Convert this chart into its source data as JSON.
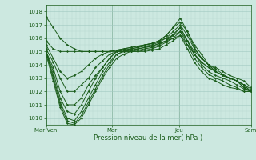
{
  "xlabel": "Pression niveau de la mer( hPa )",
  "background_color": "#cce8e0",
  "grid_color_minor": "#b8d8d0",
  "grid_color_major": "#a0c8c0",
  "line_color": "#1a5c1a",
  "ylim": [
    1009.5,
    1018.5
  ],
  "yticks": [
    1010,
    1011,
    1012,
    1013,
    1014,
    1015,
    1016,
    1017,
    1018
  ],
  "xtick_labels": [
    "Mar Ven",
    "Mer",
    "Jeu",
    "Sam"
  ],
  "xtick_positions": [
    0,
    32,
    65,
    100
  ],
  "series": [
    [
      1017.6,
      1016.8,
      1016.0,
      1015.5,
      1015.2,
      1015.0,
      1015.0,
      1015.0,
      1015.0,
      1015.0,
      1015.1,
      1015.2,
      1015.3,
      1015.4,
      1015.5,
      1015.6,
      1015.8,
      1016.2,
      1016.8,
      1017.2,
      1016.5,
      1015.5,
      1014.8,
      1014.0,
      1013.5,
      1013.2,
      1013.0,
      1012.8,
      1012.5,
      1012.0
    ],
    [
      1015.8,
      1015.2,
      1015.0,
      1015.0,
      1015.0,
      1015.0,
      1015.0,
      1015.0,
      1015.0,
      1015.0,
      1015.0,
      1015.0,
      1015.1,
      1015.2,
      1015.3,
      1015.4,
      1015.6,
      1015.8,
      1016.0,
      1016.2,
      1015.5,
      1014.8,
      1014.2,
      1013.8,
      1013.5,
      1013.2,
      1013.0,
      1012.8,
      1012.5,
      1012.2
    ],
    [
      1015.5,
      1014.5,
      1013.5,
      1013.0,
      1013.2,
      1013.5,
      1014.0,
      1014.5,
      1014.8,
      1015.0,
      1015.1,
      1015.2,
      1015.3,
      1015.4,
      1015.5,
      1015.6,
      1015.8,
      1016.0,
      1016.2,
      1016.5,
      1015.8,
      1015.0,
      1014.5,
      1014.0,
      1013.8,
      1013.5,
      1013.2,
      1013.0,
      1012.8,
      1012.3
    ],
    [
      1015.2,
      1014.2,
      1013.0,
      1012.0,
      1012.0,
      1012.5,
      1013.0,
      1013.8,
      1014.3,
      1014.8,
      1015.0,
      1015.1,
      1015.2,
      1015.3,
      1015.4,
      1015.5,
      1015.7,
      1016.0,
      1016.5,
      1017.0,
      1016.2,
      1015.2,
      1014.5,
      1014.0,
      1013.7,
      1013.3,
      1013.0,
      1012.8,
      1012.5,
      1012.0
    ],
    [
      1015.0,
      1013.8,
      1012.0,
      1011.0,
      1011.0,
      1011.5,
      1012.5,
      1013.2,
      1013.8,
      1014.5,
      1015.0,
      1015.1,
      1015.2,
      1015.3,
      1015.5,
      1015.6,
      1015.8,
      1016.2,
      1016.8,
      1017.5,
      1016.5,
      1015.3,
      1014.5,
      1014.0,
      1013.5,
      1013.2,
      1013.0,
      1012.8,
      1012.3,
      1012.0
    ],
    [
      1015.0,
      1013.5,
      1011.5,
      1010.5,
      1010.3,
      1011.0,
      1012.0,
      1013.0,
      1013.8,
      1014.5,
      1015.0,
      1015.0,
      1015.1,
      1015.2,
      1015.3,
      1015.4,
      1015.6,
      1015.8,
      1016.3,
      1016.8,
      1015.8,
      1014.8,
      1014.2,
      1013.8,
      1013.5,
      1013.2,
      1013.0,
      1012.8,
      1012.3,
      1012.0
    ],
    [
      1015.0,
      1013.2,
      1011.2,
      1010.0,
      1009.8,
      1010.5,
      1011.5,
      1012.5,
      1013.5,
      1014.2,
      1014.8,
      1015.0,
      1015.0,
      1015.1,
      1015.2,
      1015.3,
      1015.5,
      1015.8,
      1016.2,
      1016.8,
      1015.8,
      1014.8,
      1014.0,
      1013.5,
      1013.2,
      1013.0,
      1012.8,
      1012.5,
      1012.2,
      1012.0
    ],
    [
      1015.0,
      1013.0,
      1011.0,
      1009.8,
      1009.6,
      1010.2,
      1011.2,
      1012.2,
      1013.2,
      1014.0,
      1014.8,
      1015.0,
      1015.0,
      1015.0,
      1015.1,
      1015.2,
      1015.4,
      1015.7,
      1016.0,
      1016.5,
      1015.5,
      1014.5,
      1013.8,
      1013.3,
      1013.0,
      1012.8,
      1012.5,
      1012.3,
      1012.0,
      1012.0
    ],
    [
      1014.8,
      1012.8,
      1010.8,
      1009.6,
      1009.5,
      1010.0,
      1011.0,
      1012.0,
      1013.0,
      1013.8,
      1014.5,
      1014.8,
      1015.0,
      1015.0,
      1015.0,
      1015.1,
      1015.2,
      1015.5,
      1015.8,
      1016.2,
      1015.2,
      1014.2,
      1013.5,
      1013.0,
      1012.8,
      1012.5,
      1012.3,
      1012.2,
      1012.0,
      1012.0
    ]
  ]
}
